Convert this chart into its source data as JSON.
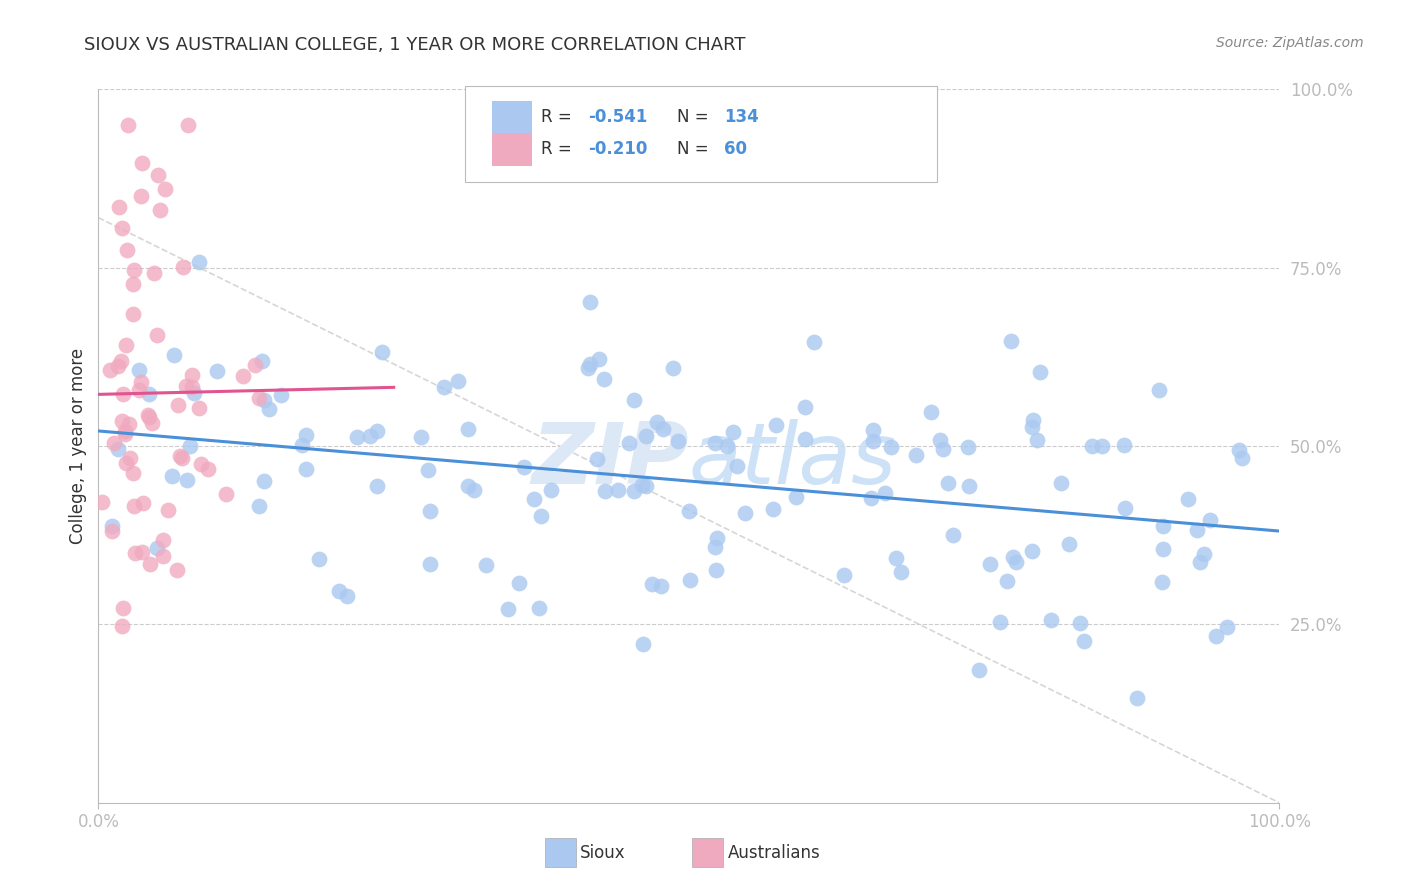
{
  "title": "SIOUX VS AUSTRALIAN COLLEGE, 1 YEAR OR MORE CORRELATION CHART",
  "source": "Source: ZipAtlas.com",
  "ylabel": "College, 1 year or more",
  "sioux_R": -0.541,
  "sioux_N": 134,
  "australians_R": -0.21,
  "australians_N": 60,
  "sioux_color": "#aac8f0",
  "australians_color": "#f0aac0",
  "sioux_line_color": "#4a90d9",
  "australians_line_color": "#e05590",
  "grid_color": "#cccccc",
  "background_color": "#ffffff",
  "title_color": "#333333",
  "source_color": "#888888",
  "tick_color": "#4a90d9",
  "watermark_color": "#dce8f5",
  "legend_text_color": "#333333",
  "legend_value_color": "#4a90d9"
}
